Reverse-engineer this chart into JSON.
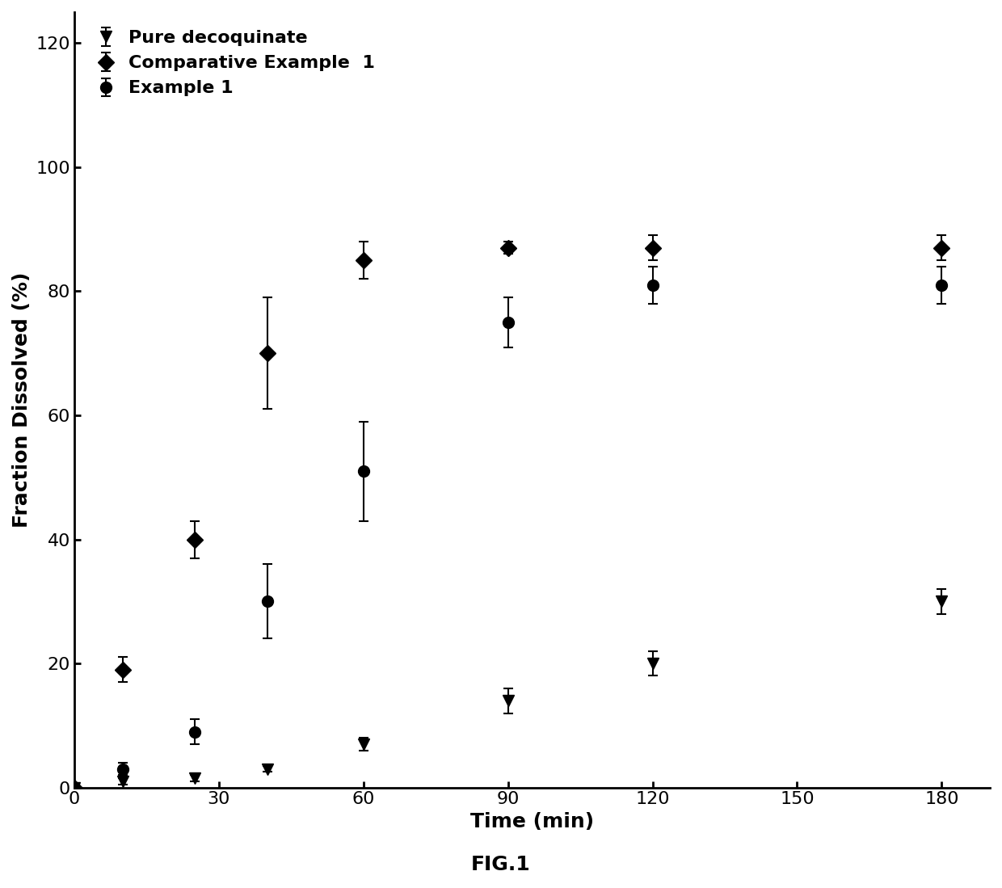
{
  "series": [
    {
      "label": "Pure decoquinate",
      "marker": "v",
      "x": [
        0,
        10,
        25,
        40,
        60,
        90,
        120,
        180
      ],
      "y": [
        0,
        1,
        1.5,
        3,
        7,
        14,
        20,
        30
      ],
      "yerr": [
        0,
        0.5,
        0.5,
        0.5,
        1,
        2,
        2,
        2
      ],
      "color": "#000000",
      "linewidth": 2,
      "markersize": 10
    },
    {
      "label": "Comparative Example  1",
      "marker": "D",
      "x": [
        0,
        10,
        25,
        40,
        60,
        90,
        120,
        180
      ],
      "y": [
        0,
        19,
        40,
        70,
        85,
        87,
        87,
        87
      ],
      "yerr": [
        0,
        2,
        3,
        9,
        3,
        1,
        2,
        2
      ],
      "color": "#000000",
      "linewidth": 2,
      "markersize": 10
    },
    {
      "label": "Example 1",
      "marker": "o",
      "x": [
        0,
        10,
        25,
        40,
        60,
        90,
        120,
        180
      ],
      "y": [
        0,
        3,
        9,
        30,
        51,
        75,
        81,
        81
      ],
      "yerr": [
        0,
        1,
        2,
        6,
        8,
        4,
        3,
        3
      ],
      "color": "#000000",
      "linewidth": 2,
      "markersize": 10
    }
  ],
  "xlabel": "Time (min)",
  "ylabel": "Fraction Dissolved (%)",
  "xlim": [
    0,
    190
  ],
  "ylim": [
    0,
    125
  ],
  "xticks": [
    0,
    30,
    60,
    90,
    120,
    150,
    180
  ],
  "yticks": [
    0,
    20,
    40,
    60,
    80,
    100,
    120
  ],
  "legend_loc": "upper left",
  "figcaption": "FIG.1",
  "background_color": "#ffffff",
  "title_fontsize": 16,
  "label_fontsize": 18,
  "tick_fontsize": 16,
  "legend_fontsize": 16
}
